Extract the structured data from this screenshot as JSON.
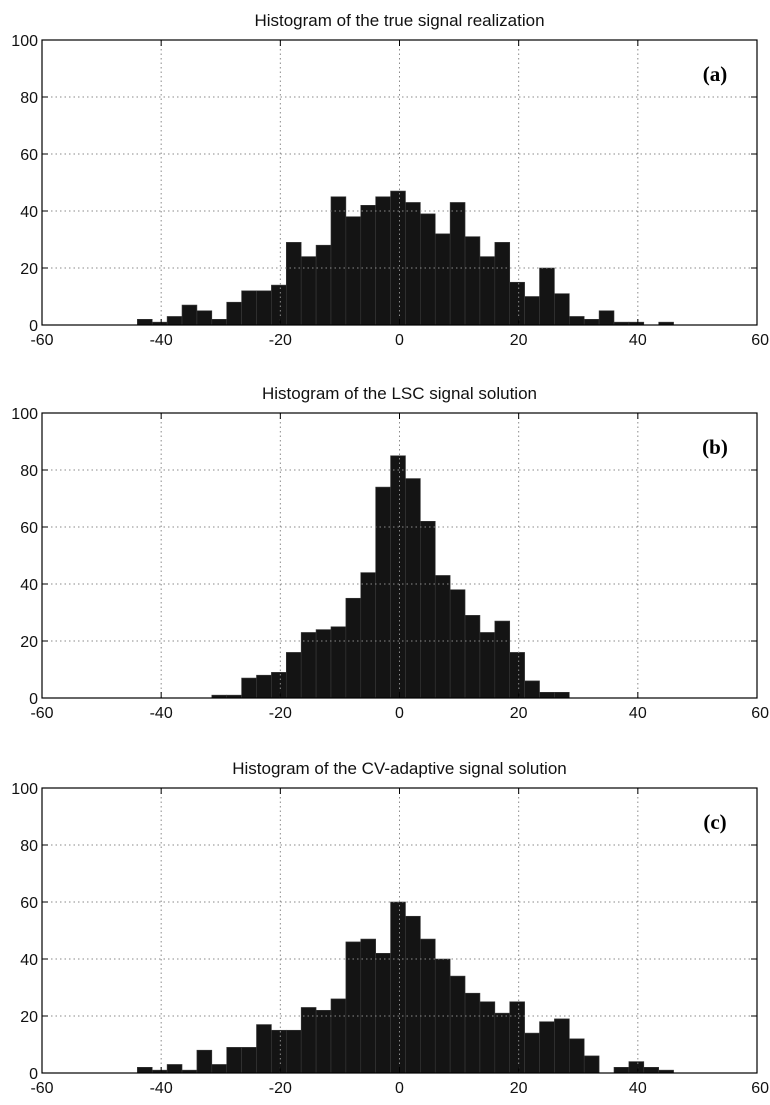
{
  "chart_data": [
    {
      "type": "bar",
      "title": "Histogram of the true signal realization",
      "panel_label": "(a)",
      "xlim": [
        -60,
        60
      ],
      "ylim": [
        0,
        100
      ],
      "xticks": [
        "-60",
        "-40",
        "-20",
        "0",
        "20",
        "40",
        "60"
      ],
      "yticks": [
        "0",
        "20",
        "40",
        "60",
        "80",
        "100"
      ],
      "grid": true,
      "bin_width": 2.5,
      "bin_starts": [
        -44,
        -41.5,
        -39,
        -36.5,
        -34,
        -31.5,
        -29,
        -26.5,
        -24,
        -21.5,
        -19,
        -16.5,
        -14,
        -11.5,
        -9,
        -6.5,
        -4,
        -1.5,
        1,
        3.5,
        6,
        8.5,
        11,
        13.5,
        16,
        18.5,
        21,
        23.5,
        26,
        28.5,
        31,
        33.5,
        36,
        38.5,
        41,
        43.5
      ],
      "values": [
        2,
        1,
        3,
        7,
        5,
        2,
        8,
        12,
        12,
        14,
        29,
        24,
        28,
        45,
        38,
        42,
        45,
        47,
        43,
        39,
        32,
        43,
        31,
        24,
        29,
        15,
        10,
        20,
        11,
        3,
        2,
        5,
        1,
        1,
        0,
        1
      ]
    },
    {
      "type": "bar",
      "title": "Histogram of the LSC signal solution",
      "panel_label": "(b)",
      "xlim": [
        -60,
        60
      ],
      "ylim": [
        0,
        100
      ],
      "xticks": [
        "-60",
        "-40",
        "-20",
        "0",
        "20",
        "40",
        "60"
      ],
      "yticks": [
        "0",
        "20",
        "40",
        "60",
        "80",
        "100"
      ],
      "grid": true,
      "bin_width": 2.5,
      "bin_starts": [
        -31.5,
        -29,
        -26.5,
        -24,
        -21.5,
        -19,
        -16.5,
        -14,
        -11.5,
        -9,
        -6.5,
        -4,
        -1.5,
        1,
        3.5,
        6,
        8.5,
        11,
        13.5,
        16,
        18.5,
        21,
        23.5,
        26
      ],
      "values": [
        1,
        1,
        7,
        8,
        9,
        16,
        23,
        24,
        25,
        35,
        44,
        74,
        85,
        77,
        62,
        43,
        38,
        29,
        23,
        27,
        16,
        6,
        2,
        2
      ]
    },
    {
      "type": "bar",
      "title": "Histogram of the CV-adaptive signal solution",
      "panel_label": "(c)",
      "xlim": [
        -60,
        60
      ],
      "ylim": [
        0,
        100
      ],
      "xticks": [
        "-60",
        "-40",
        "-20",
        "0",
        "20",
        "40",
        "60"
      ],
      "yticks": [
        "0",
        "20",
        "40",
        "60",
        "80",
        "100"
      ],
      "grid": true,
      "bin_width": 2.5,
      "bin_starts": [
        -44,
        -41.5,
        -39,
        -36.5,
        -34,
        -31.5,
        -29,
        -26.5,
        -24,
        -21.5,
        -19,
        -16.5,
        -14,
        -11.5,
        -9,
        -6.5,
        -4,
        -1.5,
        1,
        3.5,
        6,
        8.5,
        11,
        13.5,
        16,
        18.5,
        21,
        23.5,
        26,
        28.5,
        31,
        33.5,
        36,
        38.5,
        41,
        43.5
      ],
      "values": [
        2,
        1,
        3,
        1,
        8,
        3,
        9,
        9,
        17,
        15,
        15,
        23,
        22,
        26,
        46,
        47,
        42,
        60,
        55,
        47,
        40,
        34,
        28,
        25,
        21,
        25,
        14,
        18,
        19,
        12,
        6,
        0,
        2,
        4,
        2,
        1
      ]
    }
  ],
  "colors": {
    "bar_fill": "#141414",
    "bar_edge": "#3a3a3a",
    "axis": "#000000",
    "grid": "#8a8a8a",
    "background": "#ffffff"
  }
}
